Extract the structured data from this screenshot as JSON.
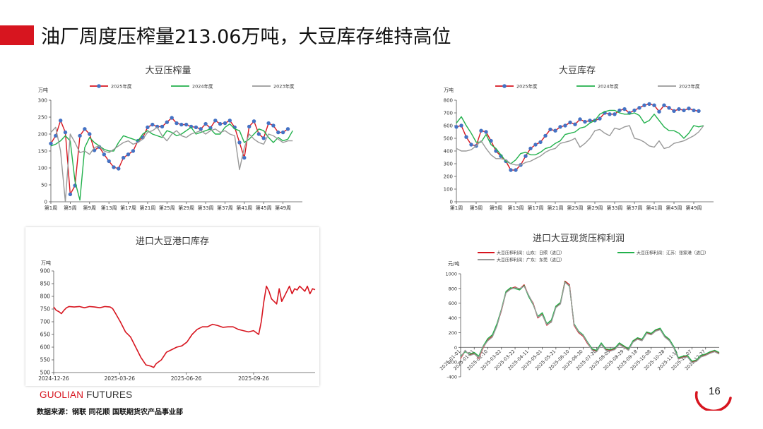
{
  "page": {
    "title": "油厂周度压榨量213.06万吨，大豆库存维持高位",
    "brand_part1": "GUOLIAN",
    "brand_part2": " FUTURES",
    "source": "数据来源：钢联  同花顺  国联期货农产品事业部",
    "page_number": "16",
    "accent_color": "#d7151f"
  },
  "chart_data": [
    {
      "id": "crush",
      "type": "line",
      "title": "大豆压榨量",
      "unit": "万吨",
      "ylim": [
        0,
        300
      ],
      "yticks": [
        0,
        50,
        100,
        150,
        200,
        250,
        300
      ],
      "xlim": [
        1,
        53
      ],
      "x_ticks": [
        {
          "pos": 1,
          "label": "第1周"
        },
        {
          "pos": 5,
          "label": "第5周"
        },
        {
          "pos": 9,
          "label": "第9周"
        },
        {
          "pos": 13,
          "label": "第13周"
        },
        {
          "pos": 17,
          "label": "第17周"
        },
        {
          "pos": 21,
          "label": "第21周"
        },
        {
          "pos": 25,
          "label": "第25周"
        },
        {
          "pos": 29,
          "label": "第29周"
        },
        {
          "pos": 33,
          "label": "第33周"
        },
        {
          "pos": 37,
          "label": "第37周"
        },
        {
          "pos": 41,
          "label": "第41周"
        },
        {
          "pos": 45,
          "label": "第45周"
        },
        {
          "pos": 49,
          "label": "第49周"
        }
      ],
      "series": [
        {
          "name": "2025年度",
          "color": "#d7151f",
          "marker": true,
          "marker_color": "#4472c4",
          "values": [
            172,
            195,
            240,
            205,
            22,
            48,
            195,
            215,
            200,
            152,
            162,
            140,
            120,
            102,
            98,
            130,
            140,
            150,
            180,
            190,
            220,
            228,
            222,
            222,
            235,
            248,
            232,
            228,
            228,
            222,
            220,
            215,
            230,
            218,
            240,
            230,
            232,
            240,
            220,
            175,
            130,
            222,
            238,
            200,
            188,
            232,
            225,
            205,
            205,
            215
          ]
        },
        {
          "name": "2024年度",
          "color": "#22b14c",
          "marker": false,
          "values": [
            165,
            170,
            180,
            195,
            180,
            60,
            5,
            160,
            190,
            175,
            165,
            155,
            150,
            150,
            175,
            195,
            190,
            185,
            180,
            200,
            210,
            200,
            195,
            190,
            210,
            205,
            195,
            200,
            210,
            220,
            200,
            205,
            210,
            215,
            200,
            200,
            220,
            230,
            215,
            210,
            175,
            185,
            200,
            215,
            210,
            190,
            175,
            190,
            180,
            185,
            210
          ]
        },
        {
          "name": "2023年度",
          "color": "#999999",
          "marker": false,
          "values": [
            205,
            220,
            150,
            0,
            200,
            175,
            145,
            150,
            140,
            160,
            165,
            150,
            145,
            155,
            165,
            175,
            180,
            170,
            175,
            185,
            205,
            210,
            220,
            195,
            180,
            200,
            210,
            195,
            190,
            200,
            205,
            210,
            200,
            210,
            215,
            205,
            210,
            200,
            195,
            95,
            160,
            200,
            185,
            175,
            170,
            200,
            195,
            185,
            175,
            180,
            180
          ]
        }
      ]
    },
    {
      "id": "stock",
      "type": "line",
      "title": "大豆库存",
      "unit": "万吨",
      "ylim": [
        0,
        800
      ],
      "yticks": [
        0,
        100,
        200,
        300,
        400,
        500,
        600,
        700,
        800
      ],
      "xlim": [
        1,
        53
      ],
      "x_ticks": [
        {
          "pos": 1,
          "label": "第1周"
        },
        {
          "pos": 5,
          "label": "第5周"
        },
        {
          "pos": 9,
          "label": "第9周"
        },
        {
          "pos": 13,
          "label": "第13周"
        },
        {
          "pos": 17,
          "label": "第17周"
        },
        {
          "pos": 21,
          "label": "第21周"
        },
        {
          "pos": 25,
          "label": "第25周"
        },
        {
          "pos": 29,
          "label": "第29周"
        },
        {
          "pos": 33,
          "label": "第33周"
        },
        {
          "pos": 37,
          "label": "第37周"
        },
        {
          "pos": 41,
          "label": "第41周"
        },
        {
          "pos": 45,
          "label": "第45周"
        },
        {
          "pos": 49,
          "label": "第49周"
        }
      ],
      "series": [
        {
          "name": "2025年度",
          "color": "#d7151f",
          "marker": true,
          "marker_color": "#4472c4",
          "values": [
            590,
            600,
            510,
            450,
            440,
            560,
            550,
            480,
            400,
            360,
            320,
            250,
            250,
            290,
            360,
            420,
            450,
            470,
            520,
            570,
            560,
            590,
            600,
            625,
            610,
            650,
            630,
            640,
            640,
            655,
            700,
            690,
            690,
            720,
            730,
            700,
            720,
            740,
            760,
            770,
            760,
            710,
            760,
            740,
            715,
            730,
            720,
            735,
            720,
            715
          ]
        },
        {
          "name": "2024年度",
          "color": "#22b14c",
          "marker": false,
          "values": [
            620,
            670,
            600,
            540,
            470,
            470,
            530,
            450,
            420,
            370,
            320,
            300,
            330,
            380,
            390,
            370,
            370,
            390,
            420,
            430,
            460,
            480,
            530,
            540,
            550,
            580,
            590,
            620,
            640,
            690,
            710,
            720,
            720,
            700,
            690,
            690,
            700,
            680,
            620,
            640,
            690,
            640,
            590,
            560,
            560,
            540,
            500,
            540,
            600,
            590,
            600
          ]
        },
        {
          "name": "2023年度",
          "color": "#999999",
          "marker": false,
          "values": [
            420,
            400,
            400,
            410,
            440,
            480,
            420,
            370,
            340,
            340,
            330,
            300,
            290,
            290,
            310,
            320,
            340,
            360,
            390,
            410,
            420,
            460,
            470,
            480,
            500,
            430,
            460,
            500,
            560,
            570,
            540,
            520,
            580,
            570,
            590,
            600,
            500,
            490,
            470,
            440,
            430,
            480,
            420,
            430,
            460,
            470,
            480,
            500,
            520,
            550,
            600
          ]
        }
      ]
    },
    {
      "id": "port",
      "type": "line",
      "title": "进口大豆港口库存",
      "unit": "万吨",
      "ylim": [
        500,
        900
      ],
      "yticks": [
        500,
        550,
        600,
        650,
        700,
        750,
        800,
        850,
        900
      ],
      "xlim": [
        0,
        51
      ],
      "x_ticks": [
        {
          "pos": 0,
          "label": "2024-12-26"
        },
        {
          "pos": 12.857,
          "label": "2025-03-26"
        },
        {
          "pos": 25.857,
          "label": "2025-06-26"
        },
        {
          "pos": 39,
          "label": "2025-09-26"
        }
      ],
      "series": [
        {
          "name": "港口库存",
          "color": "#d7151f",
          "marker": false,
          "x": [
            0,
            0.5,
            1,
            1.5,
            2,
            2.5,
            3,
            4,
            5,
            6,
            7,
            8,
            9,
            10,
            11,
            11.5,
            12,
            13,
            14,
            15,
            16,
            17,
            18,
            19,
            19.5,
            20,
            21,
            22,
            23,
            24,
            25,
            26,
            27,
            28,
            29,
            30,
            31,
            32,
            33,
            34,
            35,
            36,
            37,
            38,
            39,
            40,
            40.5,
            41,
            41.5,
            42,
            42.5,
            43,
            43.5,
            44,
            44.5,
            45,
            45.5,
            46,
            46.5,
            47,
            47.5,
            48,
            48.5,
            49,
            49.5,
            50,
            50.5,
            51
          ],
          "values": [
            758,
            745,
            740,
            732,
            745,
            755,
            760,
            758,
            760,
            755,
            760,
            758,
            755,
            760,
            758,
            752,
            735,
            700,
            660,
            640,
            600,
            560,
            530,
            525,
            520,
            535,
            550,
            580,
            590,
            600,
            605,
            620,
            650,
            670,
            680,
            680,
            690,
            685,
            678,
            680,
            680,
            670,
            665,
            660,
            665,
            650,
            700,
            780,
            840,
            820,
            790,
            780,
            770,
            830,
            780,
            800,
            820,
            840,
            810,
            830,
            825,
            840,
            830,
            820,
            840,
            810,
            830,
            826
          ]
        }
      ]
    },
    {
      "id": "margin",
      "type": "line",
      "title": "进口大豆现货压榨利润",
      "unit": "元/吨",
      "ylim": [
        -400,
        1000
      ],
      "yticks": [
        -400,
        -200,
        0,
        200,
        400,
        600,
        800,
        1000
      ],
      "xlim": [
        0,
        57
      ],
      "x_ticks": [
        {
          "pos": 0,
          "label": "2025-01-01"
        },
        {
          "pos": 3,
          "label": "2025-01-21"
        },
        {
          "pos": 6,
          "label": "2025-02-10"
        },
        {
          "pos": 9,
          "label": "2025-03-02"
        },
        {
          "pos": 12,
          "label": "2025-03-22"
        },
        {
          "pos": 15,
          "label": "2025-04-11"
        },
        {
          "pos": 18,
          "label": "2025-05-01"
        },
        {
          "pos": 21,
          "label": "2025-05-21"
        },
        {
          "pos": 24,
          "label": "2025-06-10"
        },
        {
          "pos": 27,
          "label": "2025-06-30"
        },
        {
          "pos": 30,
          "label": "2025-07-20"
        },
        {
          "pos": 33,
          "label": "2025-08-09"
        },
        {
          "pos": 36,
          "label": "2025-08-29"
        },
        {
          "pos": 39,
          "label": "2025-09-18"
        },
        {
          "pos": 42,
          "label": "2025-10-08"
        },
        {
          "pos": 45,
          "label": "2025-10-28"
        },
        {
          "pos": 48,
          "label": "2025-11-17"
        },
        {
          "pos": 51,
          "label": "2025-12-07"
        },
        {
          "pos": 54,
          "label": "2025-12-27"
        }
      ],
      "series": [
        {
          "name": "大豆压榨利润：山东：日照（进口）",
          "color": "#d7151f",
          "marker": false,
          "values": [
            -150,
            -50,
            -100,
            -80,
            -150,
            0,
            100,
            150,
            300,
            500,
            750,
            800,
            820,
            790,
            850,
            700,
            600,
            400,
            450,
            300,
            350,
            550,
            600,
            900,
            850,
            300,
            200,
            150,
            50,
            -30,
            -50,
            50,
            -30,
            -40,
            -20,
            50,
            10,
            -30,
            80,
            120,
            100,
            200,
            180,
            230,
            250,
            150,
            100,
            0,
            -150,
            -130,
            -120,
            -200,
            -180,
            -120,
            -100,
            -70,
            -50,
            -80
          ]
        },
        {
          "name": "大豆压榨利润：江苏：张家港（进口）",
          "color": "#22b14c",
          "marker": false,
          "values": [
            -120,
            -60,
            -90,
            -70,
            -120,
            20,
            120,
            170,
            320,
            520,
            760,
            810,
            800,
            780,
            840,
            690,
            580,
            420,
            470,
            320,
            370,
            560,
            610,
            890,
            830,
            320,
            220,
            170,
            70,
            -20,
            -40,
            60,
            -20,
            -30,
            -10,
            60,
            20,
            -20,
            90,
            130,
            110,
            210,
            190,
            240,
            260,
            160,
            110,
            10,
            -140,
            -120,
            -110,
            -190,
            -170,
            -110,
            -90,
            -60,
            -40,
            -70
          ]
        },
        {
          "name": "大豆压榨利润：广东：东莞（进口）",
          "color": "#999999",
          "marker": false,
          "values": [
            -140,
            -40,
            -110,
            -90,
            -140,
            10,
            90,
            140,
            290,
            510,
            740,
            790,
            810,
            800,
            830,
            710,
            590,
            410,
            440,
            310,
            340,
            540,
            590,
            880,
            840,
            310,
            210,
            160,
            60,
            -40,
            -60,
            40,
            -40,
            -50,
            -30,
            40,
            0,
            -40,
            70,
            110,
            90,
            190,
            170,
            220,
            240,
            140,
            90,
            -10,
            -160,
            -140,
            -130,
            -210,
            -190,
            -130,
            -110,
            -80,
            -60,
            -90
          ]
        }
      ]
    }
  ]
}
